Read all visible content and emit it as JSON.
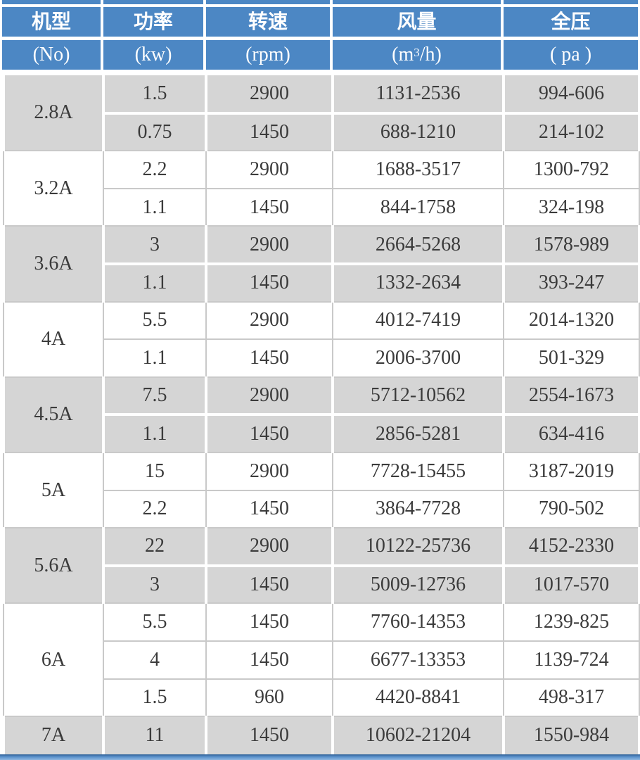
{
  "colors": {
    "header_blue": "#4c87c4",
    "row_gray": "#d5d5d5",
    "row_white": "#ffffff",
    "border_gray": "#c9c9c9",
    "border_white": "#ffffff",
    "text_dark": "#3b3b3b",
    "bottom_bar_blue": "#5b92cc"
  },
  "table": {
    "columns": [
      {
        "zh": "机型",
        "unit": "(No)"
      },
      {
        "zh": "功率",
        "unit": "(kw)"
      },
      {
        "zh": "转速",
        "unit": "(rpm)"
      },
      {
        "zh": "风量",
        "unit_pre": "(m",
        "unit_sup": "3",
        "unit_post": "/h)"
      },
      {
        "zh": "全压",
        "unit": "( pa )"
      }
    ],
    "groups": [
      {
        "model": "2.8A",
        "shade": "gray",
        "rows": [
          [
            "1.5",
            "2900",
            "1131-2536",
            "994-606"
          ],
          [
            "0.75",
            "1450",
            "688-1210",
            "214-102"
          ]
        ]
      },
      {
        "model": "3.2A",
        "shade": "white",
        "rows": [
          [
            "2.2",
            "2900",
            "1688-3517",
            "1300-792"
          ],
          [
            "1.1",
            "1450",
            "844-1758",
            "324-198"
          ]
        ]
      },
      {
        "model": "3.6A",
        "shade": "gray",
        "rows": [
          [
            "3",
            "2900",
            "2664-5268",
            "1578-989"
          ],
          [
            "1.1",
            "1450",
            "1332-2634",
            "393-247"
          ]
        ]
      },
      {
        "model": "4A",
        "shade": "white",
        "rows": [
          [
            "5.5",
            "2900",
            "4012-7419",
            "2014-1320"
          ],
          [
            "1.1",
            "1450",
            "2006-3700",
            "501-329"
          ]
        ]
      },
      {
        "model": "4.5A",
        "shade": "gray",
        "rows": [
          [
            "7.5",
            "2900",
            "5712-10562",
            "2554-1673"
          ],
          [
            "1.1",
            "1450",
            "2856-5281",
            "634-416"
          ]
        ]
      },
      {
        "model": "5A",
        "shade": "white",
        "rows": [
          [
            "15",
            "2900",
            "7728-15455",
            "3187-2019"
          ],
          [
            "2.2",
            "1450",
            "3864-7728",
            "790-502"
          ]
        ]
      },
      {
        "model": "5.6A",
        "shade": "gray",
        "rows": [
          [
            "22",
            "2900",
            "10122-25736",
            "4152-2330"
          ],
          [
            "3",
            "1450",
            "5009-12736",
            "1017-570"
          ]
        ]
      },
      {
        "model": "6A",
        "shade": "white",
        "rows": [
          [
            "5.5",
            "1450",
            "7760-14353",
            "1239-825"
          ],
          [
            "4",
            "1450",
            "6677-13353",
            "1139-724"
          ],
          [
            "1.5",
            "960",
            "4420-8841",
            "498-317"
          ]
        ]
      },
      {
        "model": "7A",
        "shade": "gray",
        "rows": [
          [
            "11",
            "1450",
            "10602-21204",
            "1550-984"
          ]
        ]
      }
    ]
  }
}
